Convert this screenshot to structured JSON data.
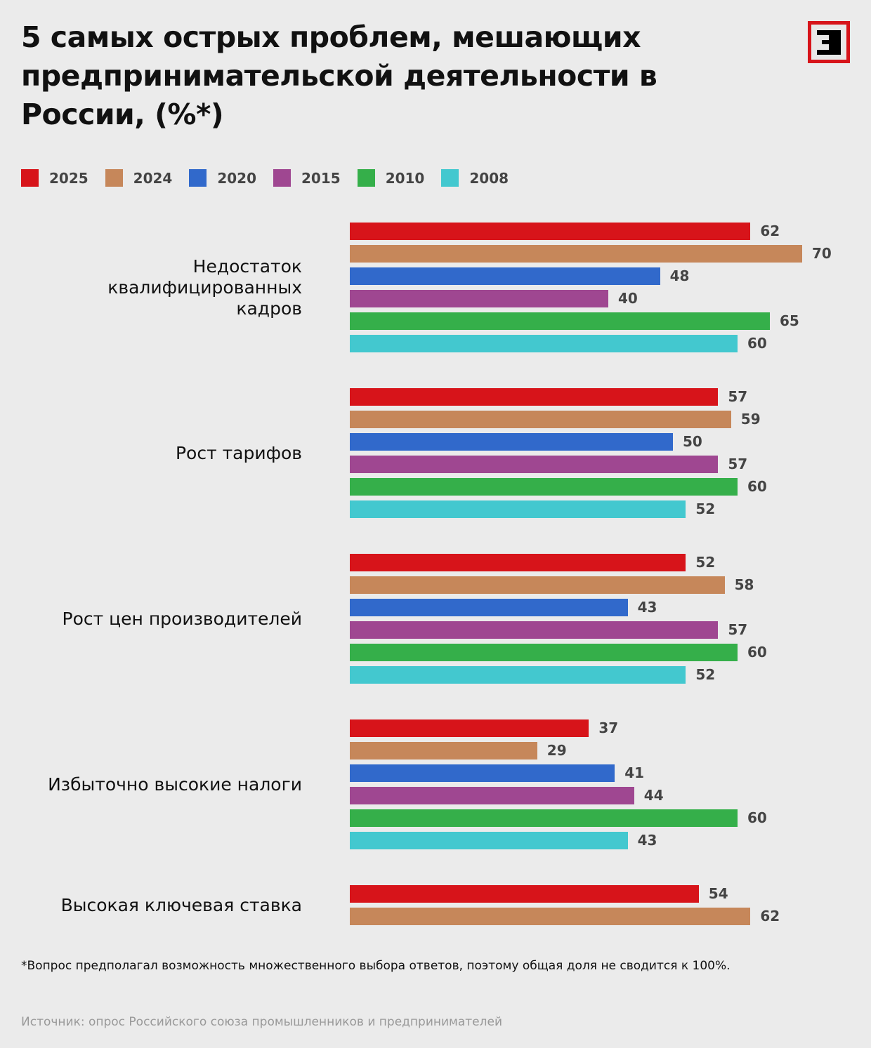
{
  "chart_data": {
    "type": "bar",
    "orientation": "horizontal",
    "title": "5 самых острых проблем, мешающих предпринимательской деятельности в России, (%*)",
    "legend_position": "top-left",
    "grid": false,
    "xlim": [
      0,
      70
    ],
    "categories": [
      "Недостаток квалифицированных кадров",
      "Рост тарифов",
      "Рост цен производителей",
      "Избыточно высокие налоги",
      "Высокая ключевая ставка"
    ],
    "series": [
      {
        "name": "2025",
        "color": "#d7141a",
        "values": [
          62,
          57,
          52,
          37,
          54
        ]
      },
      {
        "name": "2024",
        "color": "#c6875a",
        "values": [
          70,
          59,
          58,
          29,
          62
        ]
      },
      {
        "name": "2020",
        "color": "#3169cb",
        "values": [
          48,
          50,
          43,
          41,
          null
        ]
      },
      {
        "name": "2015",
        "color": "#9f4791",
        "values": [
          40,
          57,
          57,
          44,
          null
        ]
      },
      {
        "name": "2010",
        "color": "#35af4a",
        "values": [
          65,
          60,
          60,
          60,
          null
        ]
      },
      {
        "name": "2008",
        "color": "#43c8cf",
        "values": [
          60,
          52,
          52,
          43,
          null
        ]
      }
    ]
  },
  "footnote": "*Вопрос предполагал возможность множественного выбора ответов, поэтому общая доля не сводится к 100%.",
  "source": "Источник: опрос Российского союза промышленников и предпринимателей",
  "logo": {
    "text": "Э",
    "color": "#d7141a"
  }
}
